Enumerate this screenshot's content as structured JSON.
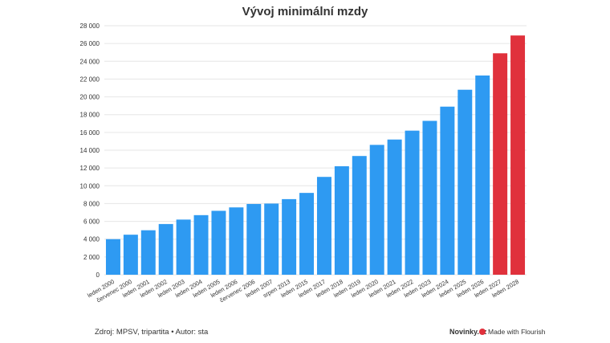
{
  "chart_data": {
    "type": "bar",
    "title": "Vývoj minimální mzdy",
    "xlabel": "",
    "ylabel": "",
    "ylim": [
      0,
      28000
    ],
    "yticks": [
      0,
      2000,
      4000,
      6000,
      8000,
      10000,
      12000,
      14000,
      16000,
      18000,
      20000,
      22000,
      24000,
      26000,
      28000
    ],
    "ytick_labels": [
      "0",
      "2 000",
      "4 000",
      "6 000",
      "8 000",
      "10 000",
      "12 000",
      "14 000",
      "16 000",
      "18 000",
      "20 000",
      "22 000",
      "24 000",
      "26 000",
      "28 000"
    ],
    "grid": true,
    "categories": [
      "leden 2000",
      "červenec 2000",
      "leden 2001",
      "leden 2002",
      "leden 2003",
      "leden 2004",
      "leden 2005",
      "leden 2006",
      "červenec 2006",
      "leden 2007",
      "srpen 2013",
      "leden 2015",
      "leden 2017",
      "leden 2018",
      "leden 2019",
      "leden 2020",
      "leden 2021",
      "leden 2022",
      "leden 2023",
      "leden 2024",
      "leden 2025",
      "leden 2026",
      "leden 2027",
      "leden 2028"
    ],
    "values": [
      4000,
      4500,
      5000,
      5700,
      6200,
      6700,
      7185,
      7570,
      7955,
      8000,
      8500,
      9200,
      11000,
      12200,
      13350,
      14600,
      15200,
      16200,
      17300,
      18900,
      20800,
      22400,
      24900,
      26900
    ],
    "colors": [
      "#2e9af2",
      "#2e9af2",
      "#2e9af2",
      "#2e9af2",
      "#2e9af2",
      "#2e9af2",
      "#2e9af2",
      "#2e9af2",
      "#2e9af2",
      "#2e9af2",
      "#2e9af2",
      "#2e9af2",
      "#2e9af2",
      "#2e9af2",
      "#2e9af2",
      "#2e9af2",
      "#2e9af2",
      "#2e9af2",
      "#2e9af2",
      "#2e9af2",
      "#2e9af2",
      "#2e9af2",
      "#e0313c",
      "#e0313c"
    ]
  },
  "footer": {
    "source": "Zdroj: MPSV, tripartita • Autor: sta",
    "publisher": "Novinky.cz",
    "flourish": "Made with Flourish",
    "flourish_icon": "flourish-logo-icon"
  }
}
